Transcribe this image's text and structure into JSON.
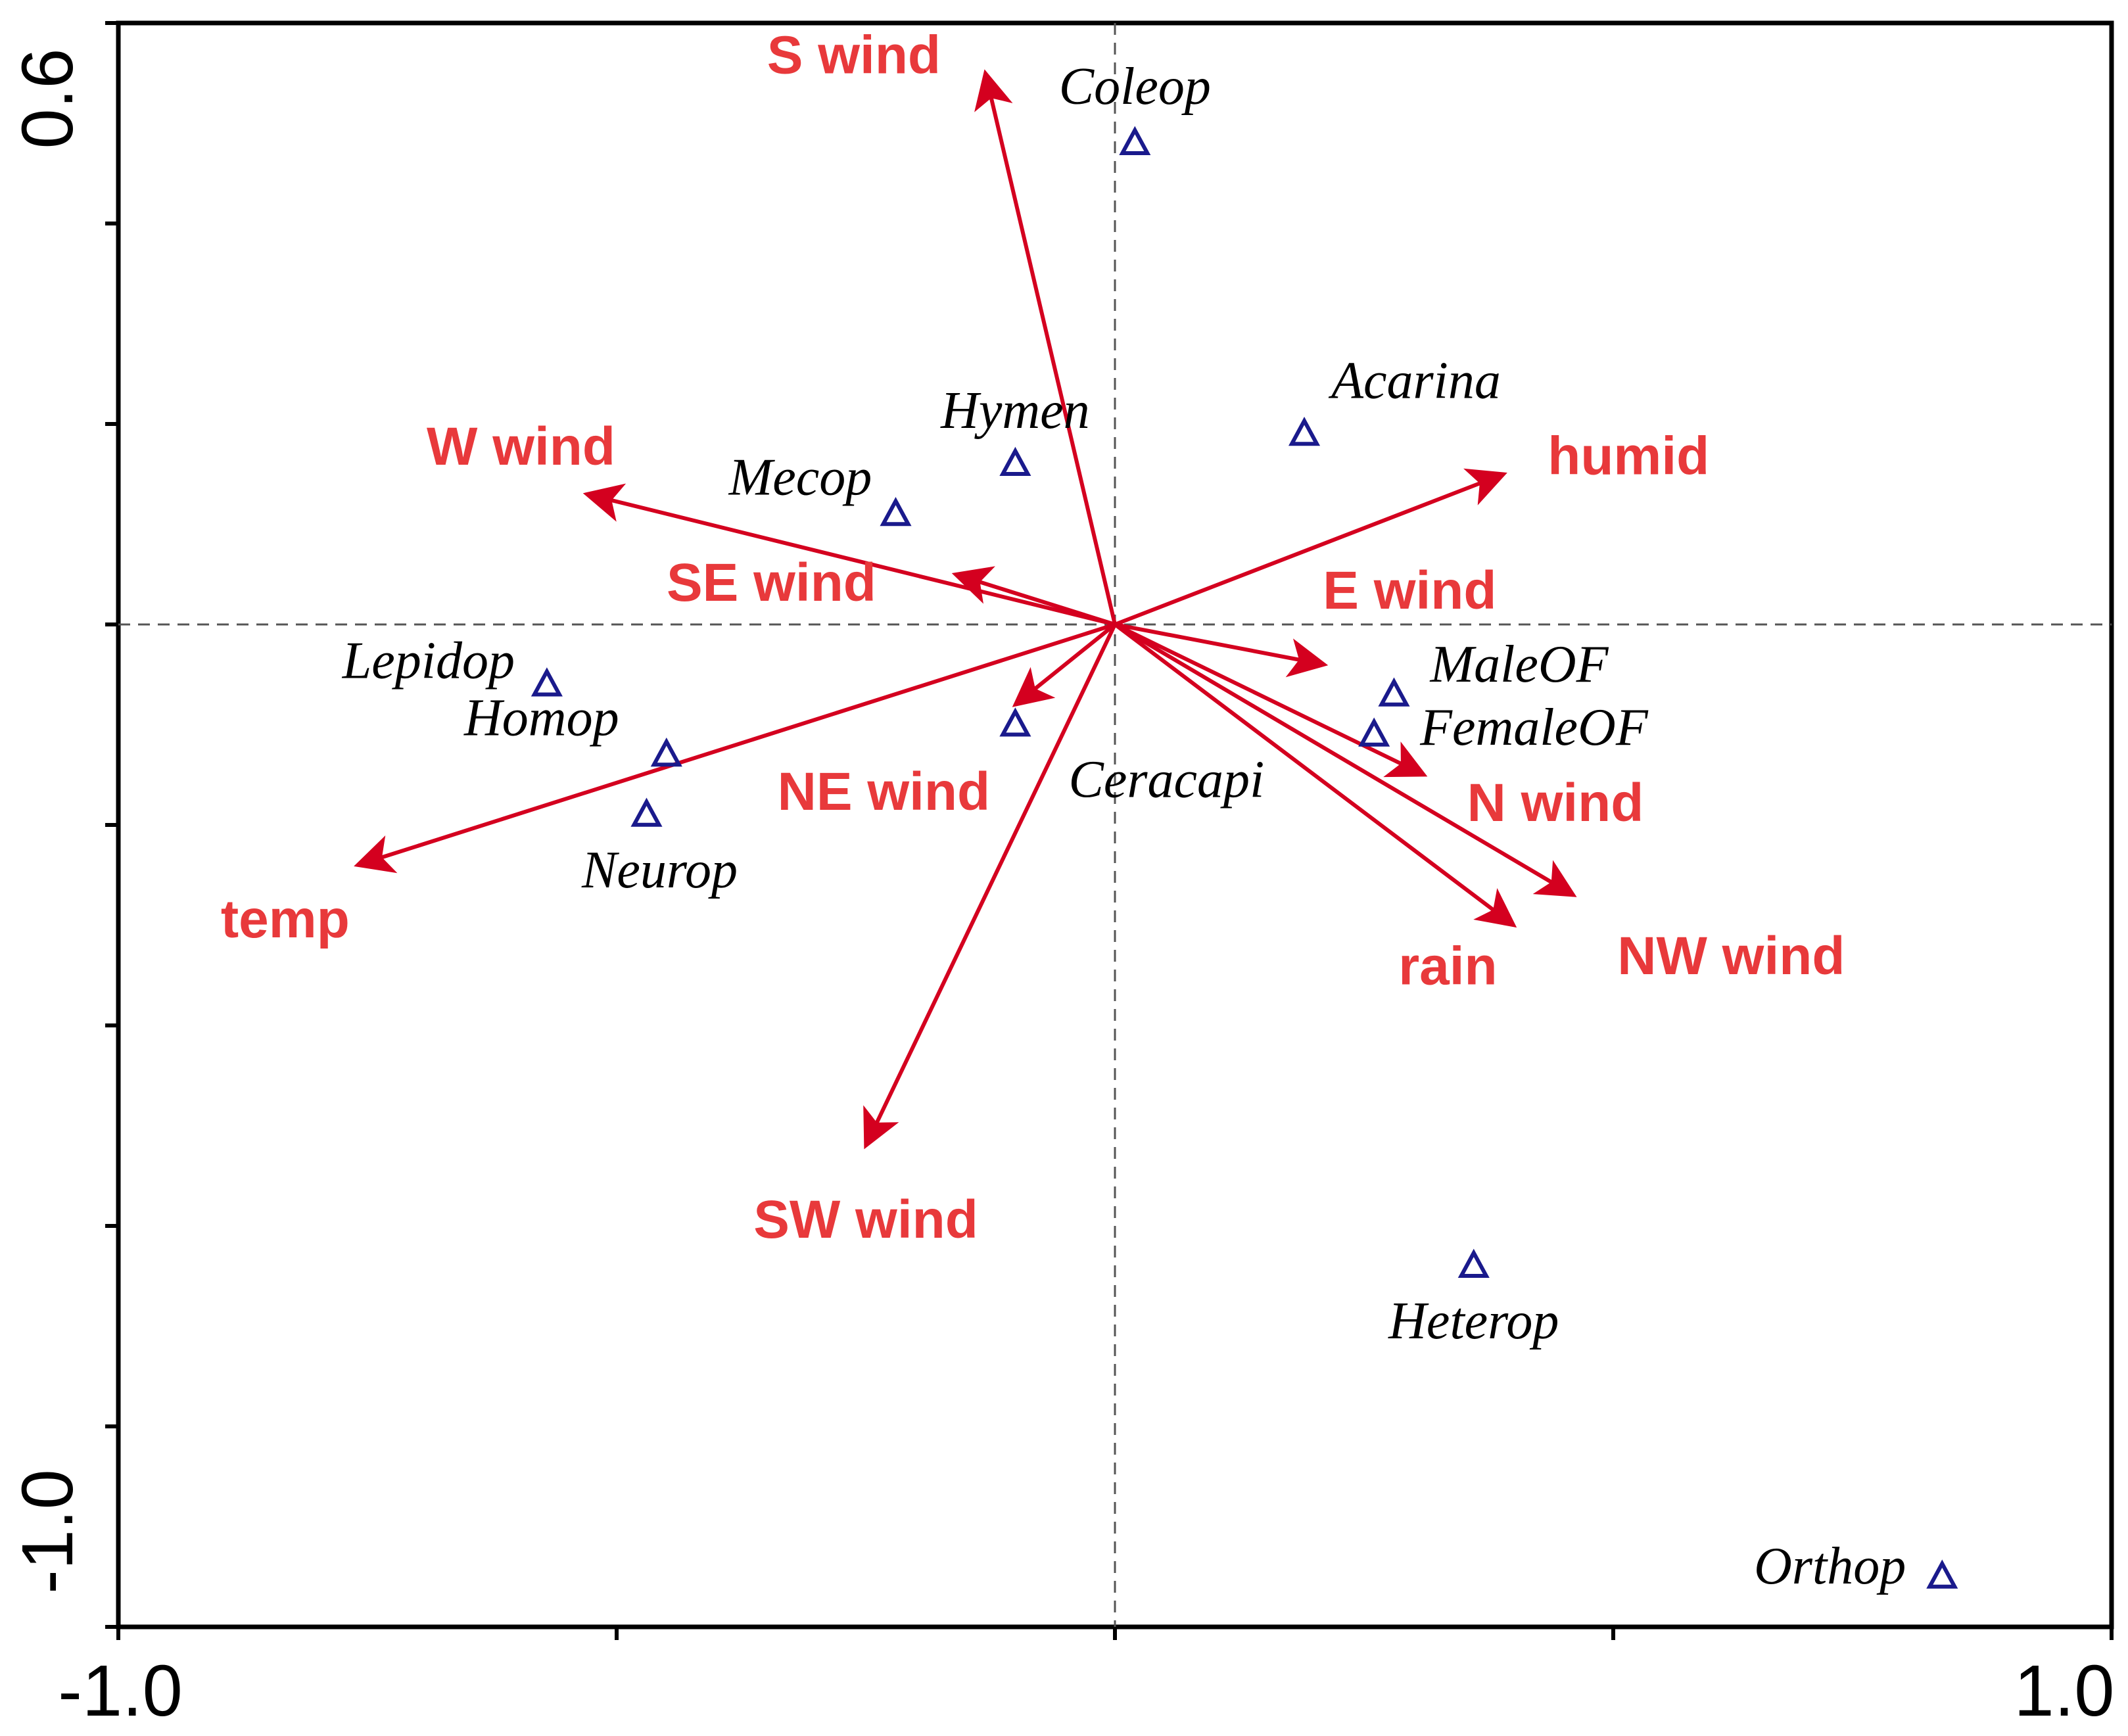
{
  "chart_data": {
    "type": "scatter",
    "subtype": "biplot",
    "xlim": [
      -1.0,
      1.0
    ],
    "ylim": [
      -1.0,
      0.6
    ],
    "x_tick_labels": [
      "-1.0",
      "1.0"
    ],
    "y_tick_labels": [
      "0.6",
      "-1.0"
    ],
    "grid": false,
    "zero_lines": "dashed",
    "colors": {
      "arrow": "#d4001f",
      "arrow_label": "#e8393b",
      "species_marker": "#1a1a8c",
      "species_label": "#000000"
    },
    "environment_vectors": [
      {
        "name": "S wind",
        "x": -0.13,
        "y": 0.55
      },
      {
        "name": "W wind",
        "x": -0.53,
        "y": 0.13
      },
      {
        "name": "SE wind",
        "x": -0.16,
        "y": 0.05
      },
      {
        "name": "NE wind",
        "x": -0.1,
        "y": -0.08
      },
      {
        "name": "temp",
        "x": -0.76,
        "y": -0.24
      },
      {
        "name": "SW wind",
        "x": -0.25,
        "y": -0.52
      },
      {
        "name": "humid",
        "x": 0.39,
        "y": 0.15
      },
      {
        "name": "E wind",
        "x": 0.21,
        "y": -0.04
      },
      {
        "name": "N wind",
        "x": 0.31,
        "y": -0.15
      },
      {
        "name": "rain",
        "x": 0.4,
        "y": -0.3
      },
      {
        "name": "NW wind",
        "x": 0.46,
        "y": -0.27
      }
    ],
    "species_points": [
      {
        "name": "Coleop",
        "x": 0.02,
        "y": 0.48
      },
      {
        "name": "Acarina",
        "x": 0.19,
        "y": 0.19
      },
      {
        "name": "Hymen",
        "x": -0.1,
        "y": 0.16
      },
      {
        "name": "Mecop",
        "x": -0.22,
        "y": 0.11
      },
      {
        "name": "Lepidop",
        "x": -0.57,
        "y": -0.06
      },
      {
        "name": "Homop",
        "x": -0.45,
        "y": -0.13
      },
      {
        "name": "Neurop",
        "x": -0.47,
        "y": -0.19
      },
      {
        "name": "Ceracapi",
        "x": -0.1,
        "y": -0.1
      },
      {
        "name": "MaleOF",
        "x": 0.28,
        "y": -0.07
      },
      {
        "name": "FemaleOF",
        "x": 0.26,
        "y": -0.11
      },
      {
        "name": "Heterop",
        "x": 0.36,
        "y": -0.64
      },
      {
        "name": "Orthop",
        "x": 0.83,
        "y": -0.95
      }
    ]
  }
}
